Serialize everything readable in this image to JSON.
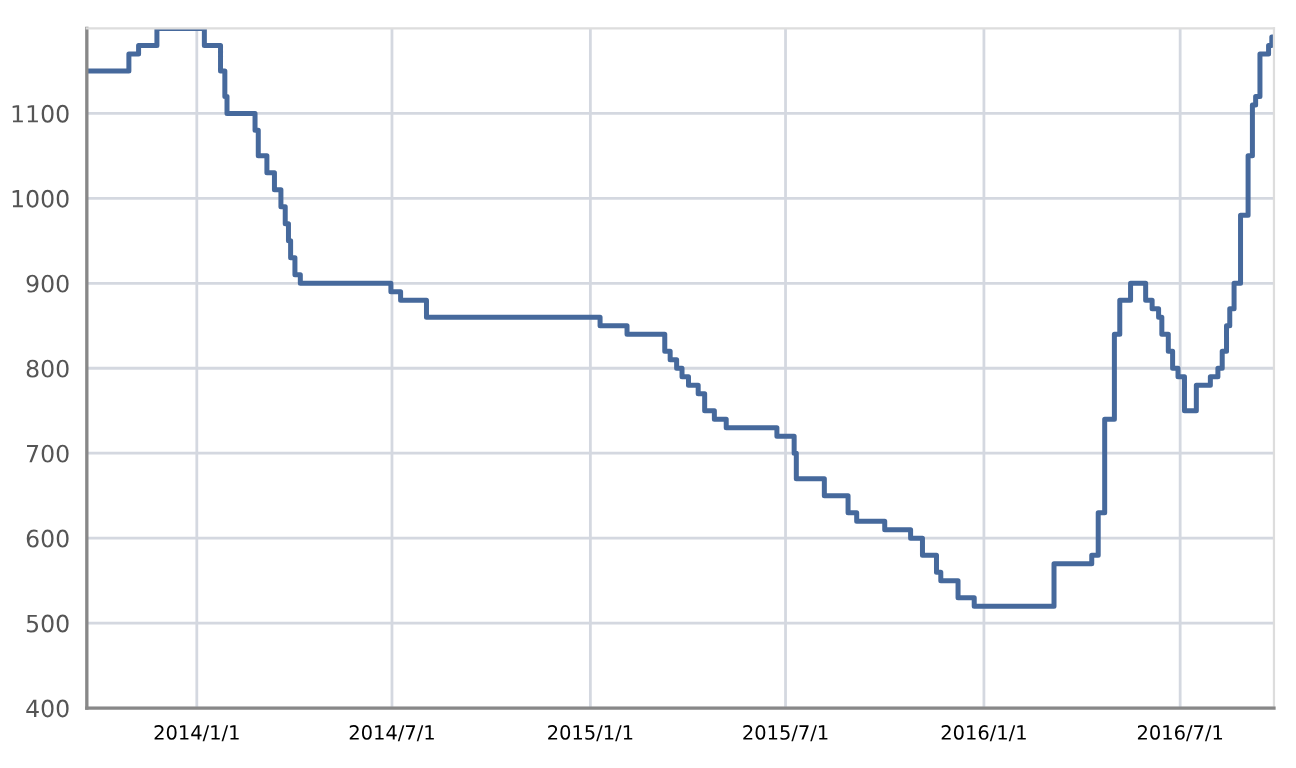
{
  "chart_data": {
    "type": "step",
    "color": "#46699c",
    "grid": true,
    "marker": "none",
    "line_style": "solid",
    "x": [
      "2013-09-21",
      "2013-10-30",
      "2013-11-08",
      "2013-11-25",
      "2014-01-08",
      "2014-01-23",
      "2014-01-27",
      "2014-01-29",
      "2014-02-05",
      "2014-02-24",
      "2014-02-27",
      "2014-03-07",
      "2014-03-14",
      "2014-03-20",
      "2014-03-24",
      "2014-03-27",
      "2014-03-29",
      "2014-04-02",
      "2014-04-07",
      "2014-06-30",
      "2014-07-09",
      "2014-08-02",
      "2015-01-10",
      "2015-02-04",
      "2015-03-11",
      "2015-03-16",
      "2015-03-22",
      "2015-03-27",
      "2015-04-02",
      "2015-04-11",
      "2015-04-17",
      "2015-04-26",
      "2015-05-07",
      "2015-06-23",
      "2015-07-09",
      "2015-07-11",
      "2015-08-06",
      "2015-08-28",
      "2015-09-05",
      "2015-10-01",
      "2015-10-25",
      "2015-11-05",
      "2015-11-18",
      "2015-11-22",
      "2015-12-08",
      "2015-12-23",
      "2016-03-06",
      "2016-04-10",
      "2016-04-16",
      "2016-04-22",
      "2016-05-01",
      "2016-05-06",
      "2016-05-16",
      "2016-05-30",
      "2016-06-05",
      "2016-06-11",
      "2016-06-14",
      "2016-06-20",
      "2016-06-24",
      "2016-06-29",
      "2016-07-05",
      "2016-07-16",
      "2016-07-29",
      "2016-08-05",
      "2016-08-09",
      "2016-08-13",
      "2016-08-16",
      "2016-08-20",
      "2016-08-26",
      "2016-09-02",
      "2016-09-06",
      "2016-09-09",
      "2016-09-13",
      "2016-09-21",
      "2016-09-24",
      "2016-09-26"
    ],
    "values": [
      1150,
      1170,
      1180,
      1200,
      1180,
      1150,
      1120,
      1100,
      1100,
      1080,
      1050,
      1030,
      1010,
      990,
      970,
      950,
      930,
      910,
      900,
      890,
      880,
      860,
      850,
      840,
      820,
      810,
      800,
      790,
      780,
      770,
      750,
      740,
      730,
      720,
      700,
      670,
      650,
      630,
      620,
      610,
      600,
      580,
      560,
      550,
      530,
      520,
      570,
      580,
      630,
      740,
      840,
      880,
      900,
      880,
      870,
      860,
      840,
      820,
      800,
      790,
      750,
      780,
      790,
      800,
      820,
      850,
      870,
      900,
      980,
      1050,
      1110,
      1120,
      1170,
      1180,
      1190,
      1190
    ],
    "xlim": [
      "2013-09-21",
      "2016-09-26"
    ],
    "xticks": [
      {
        "value": "2014-01-01",
        "label": "2014/1/1"
      },
      {
        "value": "2014-07-01",
        "label": "2014/7/1"
      },
      {
        "value": "2015-01-01",
        "label": "2015/1/1"
      },
      {
        "value": "2015-07-01",
        "label": "2015/7/1"
      },
      {
        "value": "2016-01-01",
        "label": "2016/1/1"
      },
      {
        "value": "2016-07-01",
        "label": "2016/7/1"
      }
    ],
    "ylim": [
      400,
      1200
    ],
    "yticks": [
      400,
      500,
      600,
      700,
      800,
      900,
      1000,
      1100
    ]
  }
}
